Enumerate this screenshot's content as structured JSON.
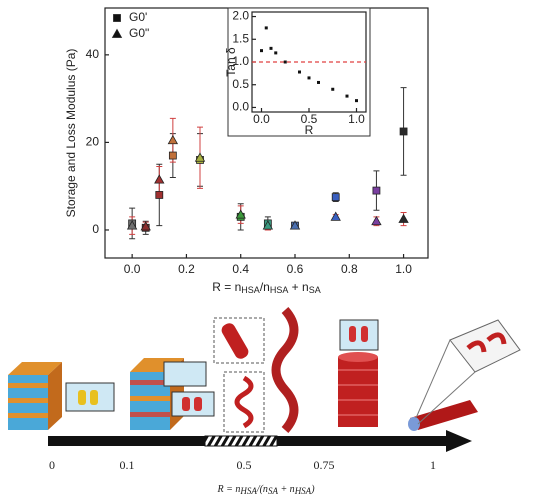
{
  "chart_data": {
    "type": "scatter",
    "y_label": "Storage and Loss Modulus (Pa)",
    "x_label": [
      "R = n",
      "HSA",
      "/n",
      "HSA",
      " + n",
      "SA"
    ],
    "x": [
      0.0,
      0.05,
      0.1,
      0.15,
      0.25,
      0.4,
      0.5,
      0.6,
      0.75,
      0.9,
      1.0
    ],
    "point_colors": [
      "#707070",
      "#8b2d2d",
      "#a03030",
      "#c0703a",
      "#a8b040",
      "#3c9a3c",
      "#3a9a80",
      "#4a6fb0",
      "#3a5fc0",
      "#7a3fa0",
      "#2a2a2a"
    ],
    "error_color": "#d04040",
    "series": [
      {
        "name": "G0'",
        "marker": "square",
        "values": [
          1.5,
          0.5,
          8,
          17,
          16,
          3,
          1.5,
          1,
          7.5,
          9,
          22.5
        ],
        "errors": [
          3.5,
          1.5,
          7,
          5,
          6,
          3,
          1.5,
          0.5,
          1,
          4.5,
          10
        ]
      },
      {
        "name": "G0\"",
        "marker": "triangle",
        "values": [
          1,
          0.8,
          11.5,
          20.5,
          16.5,
          3.5,
          1,
          1,
          3,
          2,
          2.5
        ],
        "errors": [
          2,
          1,
          3,
          5,
          7,
          2,
          1,
          0.5,
          0.5,
          1,
          1.5
        ]
      }
    ],
    "xlim": [
      -0.1,
      1.09
    ],
    "ylim": [
      -6.4,
      50.7
    ],
    "xticks": [
      {
        "value": 0,
        "label": "0.0"
      },
      {
        "value": 0.2,
        "label": "0.2"
      },
      {
        "value": 0.4,
        "label": "0.4"
      },
      {
        "value": 0.6,
        "label": "0.6"
      },
      {
        "value": 0.8,
        "label": "0.8"
      },
      {
        "value": 1,
        "label": "1.0"
      }
    ],
    "yticks": [
      0,
      20,
      40
    ],
    "legend": "upper-left",
    "inset": {
      "type": "scatter",
      "y_label": "Tan δ",
      "x_label": "R",
      "x": [
        0.0,
        0.05,
        0.1,
        0.15,
        0.25,
        0.4,
        0.5,
        0.6,
        0.75,
        0.9,
        1.0
      ],
      "values": [
        1.25,
        1.75,
        1.3,
        1.2,
        1.0,
        0.78,
        0.65,
        0.55,
        0.4,
        0.25,
        0.15
      ],
      "color": "#111",
      "reference_line": 1.0,
      "reference_color": "#e04040",
      "xlim": [
        -0.1,
        1.1
      ],
      "ylim": [
        -0.1,
        2.1
      ],
      "xticks": [
        {
          "value": 0,
          "label": "0.0"
        },
        {
          "value": 0.5,
          "label": "0.5"
        },
        {
          "value": 1,
          "label": "1.0"
        }
      ],
      "yticks": [
        {
          "value": 0,
          "label": "0.0"
        },
        {
          "value": 0.5,
          "label": "0.5"
        },
        {
          "value": 1,
          "label": "1.0"
        },
        {
          "value": 1.5,
          "label": "1.5"
        },
        {
          "value": 2,
          "label": "2.0"
        }
      ]
    }
  },
  "diagram": {
    "timeline_labels": [
      "0",
      "0.1",
      "0.5",
      "0.75",
      "1"
    ],
    "caption": [
      "R = n",
      "HSA",
      "/(n",
      "SA",
      " + n",
      "HSA",
      ")"
    ]
  }
}
